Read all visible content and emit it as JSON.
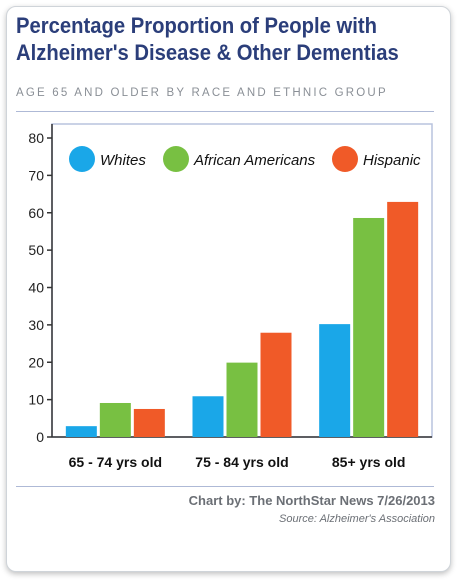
{
  "header": {
    "title_line1": "Percentage Proportion of People with",
    "title_line2": "Alzheimer's Disease & Other Dementias",
    "subtitle": "AGE 65 AND OLDER BY RACE AND ETHNIC GROUP"
  },
  "footer": {
    "credit": "Chart by: The NorthStar News 7/26/2013",
    "source": "Source: Alzheimer's Association"
  },
  "chart_data": {
    "type": "bar",
    "title": "Percentage Proportion of People with Alzheimer's Disease & Other Dementias",
    "subtitle": "AGE 65 AND OLDER BY RACE AND ETHNIC GROUP",
    "xlabel": "",
    "ylabel": "",
    "categories": [
      "65 - 74 yrs old",
      "75 - 84 yrs old",
      "85+ yrs old"
    ],
    "series": [
      {
        "name": "Whites",
        "color": "#1aa7e8",
        "values": [
          2.9,
          10.9,
          30.2
        ]
      },
      {
        "name": "African Americans",
        "color": "#78c042",
        "values": [
          9.1,
          19.9,
          58.6
        ]
      },
      {
        "name": "Hispanic",
        "color": "#f05a28",
        "values": [
          7.5,
          27.9,
          62.9
        ]
      }
    ],
    "ylim": [
      0,
      80
    ],
    "yticks": [
      "0",
      "10",
      "20",
      "30",
      "40",
      "50",
      "60",
      "70",
      "80"
    ],
    "legend_position": "top",
    "grid": false
  }
}
